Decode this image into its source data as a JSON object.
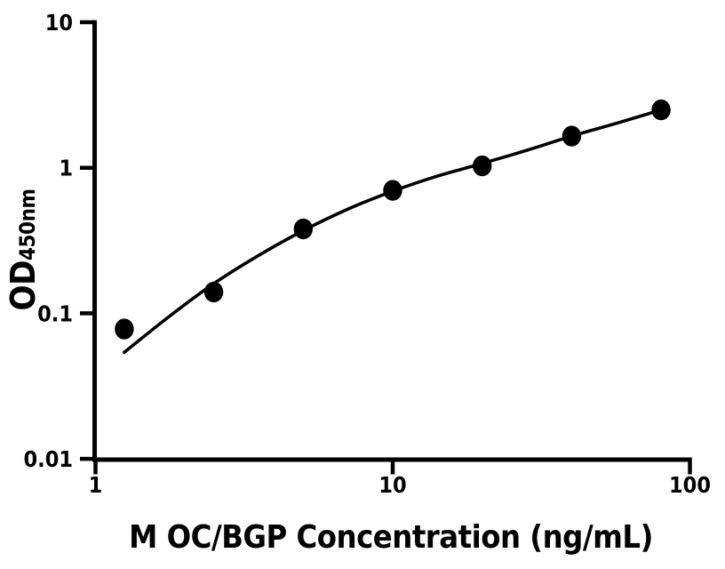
{
  "figure": {
    "background": "#ffffff",
    "axis_color": "#000000"
  },
  "chart_data": {
    "type": "scatter",
    "title": "",
    "xlabel": "M OC/BGP Concentration (ng/mL)",
    "ylabel": {
      "main": "OD",
      "subscript": "450nm"
    },
    "x_scale": "log",
    "y_scale": "log",
    "xlim": [
      1,
      100
    ],
    "ylim": [
      0.01,
      10
    ],
    "grid": false,
    "legend": null,
    "x_ticks": [
      {
        "value": 1,
        "label": "1"
      },
      {
        "value": 10,
        "label": "10"
      },
      {
        "value": 100,
        "label": "100"
      }
    ],
    "y_ticks": [
      {
        "value": 10,
        "label": "10"
      },
      {
        "value": 1,
        "label": "1"
      },
      {
        "value": 0.1,
        "label": "0.1"
      },
      {
        "value": 0.01,
        "label": "0.01"
      }
    ],
    "series": [
      {
        "name": "standard-points",
        "type": "scatter",
        "marker": {
          "shape": "ellipse",
          "color": "#000000"
        },
        "points": [
          {
            "x": 1.25,
            "y": 0.078
          },
          {
            "x": 2.5,
            "y": 0.14
          },
          {
            "x": 5,
            "y": 0.38
          },
          {
            "x": 10,
            "y": 0.7
          },
          {
            "x": 20,
            "y": 1.03
          },
          {
            "x": 40,
            "y": 1.65
          },
          {
            "x": 80,
            "y": 2.5
          }
        ]
      },
      {
        "name": "fit-curve",
        "type": "line",
        "color": "#000000",
        "points": [
          {
            "x": 1.25,
            "y": 0.054
          },
          {
            "x": 1.77,
            "y": 0.095
          },
          {
            "x": 2.5,
            "y": 0.16
          },
          {
            "x": 3.54,
            "y": 0.25
          },
          {
            "x": 5,
            "y": 0.37
          },
          {
            "x": 7.07,
            "y": 0.52
          },
          {
            "x": 10,
            "y": 0.69
          },
          {
            "x": 14.1,
            "y": 0.875
          },
          {
            "x": 20,
            "y": 1.07
          },
          {
            "x": 28.3,
            "y": 1.32
          },
          {
            "x": 40,
            "y": 1.65
          },
          {
            "x": 56.6,
            "y": 2.02
          },
          {
            "x": 80,
            "y": 2.5
          }
        ]
      }
    ]
  }
}
